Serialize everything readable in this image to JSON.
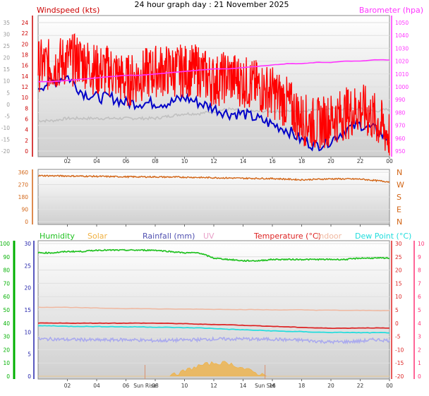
{
  "title": "24 hour graph day : 21 November 2025",
  "colors": {
    "wind": "#ff0000",
    "gust_avg": "#0000c8",
    "barometer": "#ff33ff",
    "pressure_band": "#c0c0c0",
    "direction": "#d26414",
    "humidity": "#22c222",
    "solar": "#f0b040",
    "rainfall": "#5050b0",
    "uv": "#e8a0c8",
    "temperature": "#dd2222",
    "indoor": "#f0b8a0",
    "dewpoint": "#22dddd",
    "axis_left_wind": "#cc0000",
    "axis_grey": "#999999",
    "axis_green": "#00b000",
    "axis_blue": "#2222aa",
    "axis_pink": "#ff3377",
    "plot_bg_top": "#ffffff",
    "plot_bg_bottom": "#cfcfcf"
  },
  "panel_top": {
    "left_label": "Windspeed (kts)",
    "right_label": "Barometer (hpa)",
    "left_ticks_red": [
      "24",
      "22",
      "20",
      "18",
      "16",
      "14",
      "12",
      "10",
      "8",
      "6",
      "4",
      "2",
      "0"
    ],
    "left_ticks_grey": [
      "35",
      "30",
      "25",
      "20",
      "15",
      "10",
      "5",
      "0",
      "-5",
      "-10",
      "-15",
      "-20"
    ],
    "right_ticks": [
      "1050",
      "1040",
      "1030",
      "1020",
      "1010",
      "1000",
      "990",
      "980",
      "970",
      "960",
      "950"
    ]
  },
  "panel_mid": {
    "left_ticks": [
      "360",
      "270",
      "180",
      "90",
      "0"
    ],
    "right_ticks": [
      "N",
      "W",
      "S",
      "E",
      "N"
    ]
  },
  "panel_bottom": {
    "legend": [
      {
        "key": "humidity",
        "label": "Humidity"
      },
      {
        "key": "solar",
        "label": "Solar"
      },
      {
        "key": "rainfall",
        "label": "Rainfall (mm)"
      },
      {
        "key": "uv",
        "label": "UV"
      },
      {
        "key": "temperature",
        "label": "Temperature (°C)"
      },
      {
        "key": "indoor",
        "label": "Indoor"
      },
      {
        "key": "dewpoint",
        "label": "Dew Point (°C)"
      }
    ],
    "left_ticks_humidity": [
      "100",
      "90",
      "80",
      "70",
      "60",
      "50",
      "40",
      "30",
      "20",
      "10",
      "0"
    ],
    "left_ticks_rain": [
      "30",
      "25",
      "20",
      "15",
      "10",
      "5",
      "0"
    ],
    "right_ticks_temp": [
      "30",
      "25",
      "20",
      "15",
      "10",
      "5",
      "0",
      "-5",
      "-10",
      "-15",
      "-20"
    ],
    "right_ticks_uv": [
      "10",
      "9",
      "8",
      "7",
      "6",
      "5",
      "4",
      "3",
      "2",
      "1",
      "0"
    ],
    "markers": [
      "Sun Rise",
      "Sun Set"
    ]
  },
  "x_ticks": [
    "02",
    "04",
    "06",
    "08",
    "10",
    "12",
    "14",
    "16",
    "18",
    "20",
    "22",
    "00"
  ],
  "chart_data": [
    {
      "type": "line",
      "title": "24 hour graph day : 21 November 2025",
      "x_unit": "hour",
      "x": [
        0,
        1,
        2,
        3,
        4,
        5,
        6,
        7,
        8,
        9,
        10,
        11,
        12,
        13,
        14,
        15,
        16,
        17,
        18,
        19,
        20,
        21,
        22,
        23,
        24
      ],
      "series": [
        {
          "name": "Windspeed (kts)",
          "values": [
            16,
            16,
            17,
            17,
            15,
            15,
            13,
            14,
            15,
            15,
            15,
            15,
            13,
            14,
            13,
            12,
            11,
            9,
            6,
            5,
            6,
            7,
            8,
            6,
            3
          ]
        },
        {
          "name": "Barometer (hpa)",
          "values": [
            1004,
            1004,
            1005,
            1006,
            1007,
            1008,
            1009,
            1009,
            1010,
            1011,
            1012,
            1013,
            1014,
            1014,
            1015,
            1016,
            1017,
            1018,
            1018,
            1019,
            1019,
            1020,
            1020,
            1021,
            1021
          ]
        }
      ],
      "extra_series": [
        {
          "values": [
            12,
            13,
            14,
            11,
            10,
            10,
            9,
            9,
            9,
            9,
            10,
            9,
            8,
            7,
            7,
            6,
            5,
            4,
            2,
            1,
            2,
            4,
            5,
            4,
            2
          ]
        },
        {
          "values": [
            -7,
            -7,
            -6,
            -6,
            -6,
            -6,
            -6,
            -6,
            -6,
            -5,
            -4,
            -4,
            -3,
            -2,
            -3,
            -3,
            -3,
            -3,
            -3,
            -2,
            -2,
            -2,
            -2,
            -3,
            -2
          ]
        }
      ],
      "ylim_left": [
        0,
        25
      ],
      "ylim_right": [
        950,
        1050
      ]
    },
    {
      "type": "line",
      "x": [
        0,
        2,
        4,
        6,
        8,
        10,
        12,
        14,
        16,
        18,
        20,
        22,
        24
      ],
      "series": [
        {
          "values": [
            335,
            333,
            330,
            327,
            326,
            324,
            320,
            316,
            314,
            305,
            312,
            310,
            290
          ]
        }
      ],
      "ylim": [
        0,
        360
      ]
    },
    {
      "type": "line",
      "x": [
        0,
        1,
        2,
        3,
        4,
        5,
        6,
        7,
        8,
        9,
        10,
        11,
        12,
        13,
        14,
        15,
        16,
        17,
        18,
        19,
        20,
        21,
        22,
        23,
        24
      ],
      "series": [
        {
          "name": "Humidity",
          "values": [
            93,
            93,
            94,
            94,
            95,
            95,
            95,
            95,
            95,
            94,
            93,
            93,
            89,
            88,
            87,
            87,
            88,
            88,
            88,
            88,
            88,
            88,
            89,
            89,
            89
          ]
        },
        {
          "name": "Temperature (°C)",
          "values": [
            0,
            0,
            0,
            0,
            0,
            0,
            0,
            0,
            0,
            -0.1,
            -0.2,
            -0.4,
            -0.5,
            -0.6,
            -0.8,
            -1,
            -1.2,
            -1.4,
            -1.6,
            -1.8,
            -1.9,
            -1.9,
            -1.8,
            -1.8,
            -1.9
          ]
        },
        {
          "name": "Indoor",
          "values": [
            6,
            6,
            6,
            5.8,
            5.7,
            5.6,
            5.5,
            5.5,
            5.4,
            5.3,
            5.3,
            5.3,
            5.2,
            5.2,
            5.1,
            5.1,
            5.0,
            5.0,
            5.0,
            4.9,
            4.9,
            4.8,
            4.8,
            4.8,
            4.7
          ]
        },
        {
          "name": "Dew Point (°C)",
          "values": [
            -1,
            -1,
            -1.2,
            -1.2,
            -1.3,
            -1.3,
            -1.4,
            -1.4,
            -1.5,
            -1.6,
            -1.7,
            -1.8,
            -2,
            -2.3,
            -2.5,
            -2.7,
            -2.9,
            -3.1,
            -3.2,
            -3.4,
            -3.5,
            -3.5,
            -3.6,
            -3.6,
            -3.6
          ]
        },
        {
          "name": "Solar",
          "values": [
            0,
            0,
            0,
            0,
            0,
            0,
            0,
            0,
            0,
            0,
            2,
            4,
            5,
            5,
            3,
            1,
            0,
            0,
            0,
            0,
            0,
            0,
            0,
            0,
            0
          ]
        }
      ],
      "extra_series": [
        {
          "values": [
            -6,
            -6,
            -6.2,
            -6.2,
            -6.4,
            -6.3,
            -6.2,
            -6.4,
            -6.6,
            -6.5,
            -6.3,
            -6.2,
            -6.0,
            -6.0,
            -5.9,
            -6.1,
            -6.0,
            -6.3,
            -6.4,
            -6.8,
            -7.1,
            -7.0,
            -6.8,
            -6.2,
            -6.5
          ]
        }
      ],
      "ylim_left": [
        0,
        100
      ],
      "ylim_right": [
        -20,
        30
      ]
    }
  ]
}
